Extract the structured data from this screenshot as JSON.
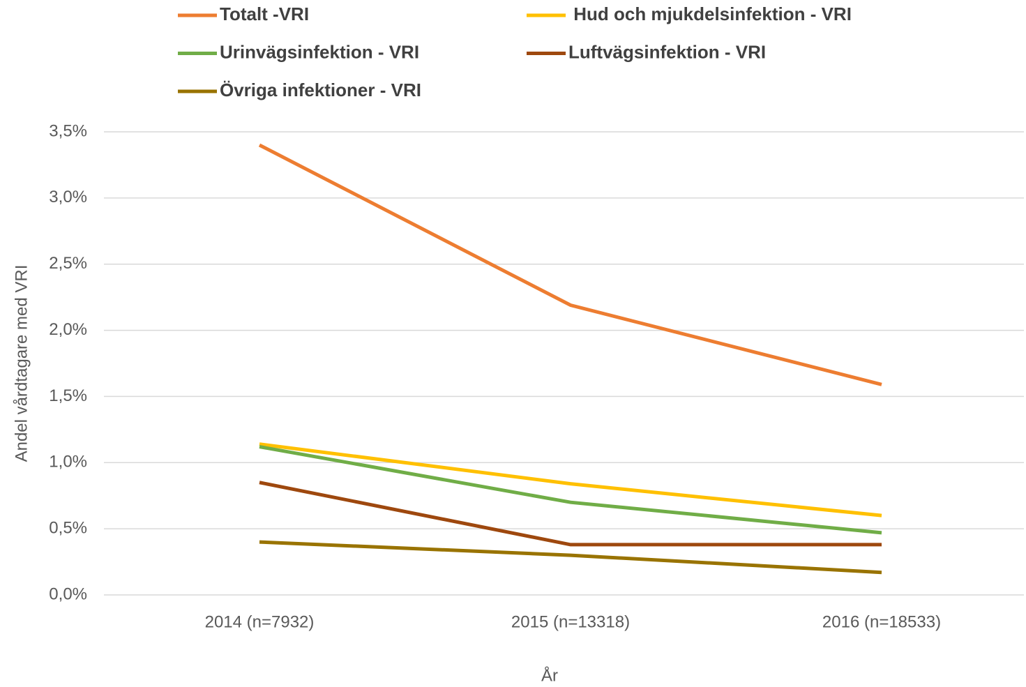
{
  "chart_data": {
    "type": "line",
    "xlabel": "År",
    "ylabel": "Andel vårdtagare med VRI",
    "categories": [
      "2014 (n=7932)",
      "2015 (n=13318)",
      "2016 (n=18533)"
    ],
    "series": [
      {
        "name": "Totalt -VRI",
        "color": "#ed7d31",
        "values": [
          3.4,
          2.19,
          1.59
        ]
      },
      {
        "name": " Hud och mjukdelsinfektion - VRI",
        "color": "#ffc000",
        "values": [
          1.14,
          0.84,
          0.6
        ]
      },
      {
        "name": "Urinvägsinfektion - VRI",
        "color": "#70ad47",
        "values": [
          1.12,
          0.7,
          0.47
        ]
      },
      {
        "name": "Luftvägsinfektion - VRI",
        "color": "#9e480e",
        "values": [
          0.85,
          0.38,
          0.38
        ]
      },
      {
        "name": "Övriga infektioner - VRI",
        "color": "#997300",
        "values": [
          0.4,
          0.3,
          0.17
        ]
      }
    ],
    "ylim": [
      0,
      3.5
    ],
    "yticks": [
      {
        "value": 0,
        "label": "0,0%"
      },
      {
        "value": 0.5,
        "label": "0,5%"
      },
      {
        "value": 1,
        "label": "1,0%"
      },
      {
        "value": 1.5,
        "label": "1,5%"
      },
      {
        "value": 2,
        "label": "2,0%"
      },
      {
        "value": 2.5,
        "label": "2,5%"
      },
      {
        "value": 3,
        "label": "3,0%"
      },
      {
        "value": 3.5,
        "label": "3,5%"
      }
    ],
    "grid": true,
    "legend": "top"
  }
}
